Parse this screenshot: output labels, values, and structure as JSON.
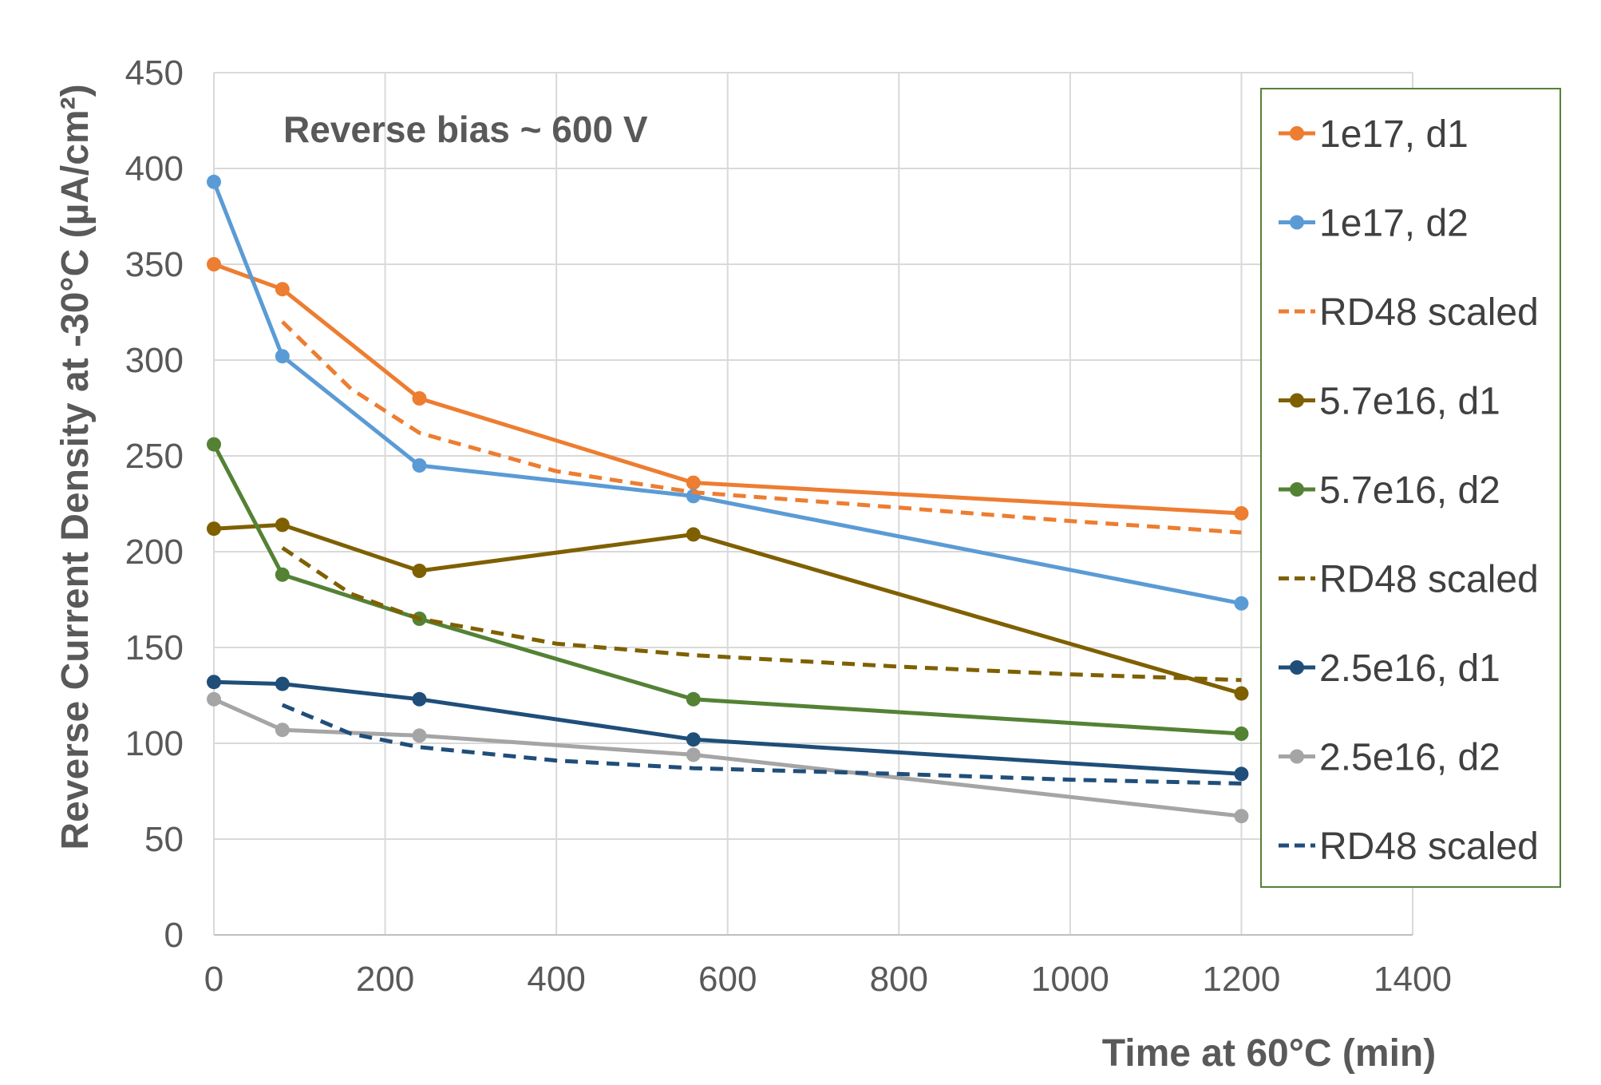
{
  "chart_data": {
    "type": "line",
    "title": "",
    "annotation": "Reverse bias ~ 600 V",
    "xlabel": "Time at 60°C (min)",
    "ylabel": "Reverse Current Density at -30°C (µA/cm²)",
    "xlim": [
      0,
      1400
    ],
    "ylim": [
      0,
      450
    ],
    "xticks": [
      0,
      200,
      400,
      600,
      800,
      1000,
      1200,
      1400
    ],
    "yticks": [
      0,
      50,
      100,
      150,
      200,
      250,
      300,
      350,
      400,
      450
    ],
    "grid": true,
    "legend_position": "right",
    "series": [
      {
        "name": "1e17, d1",
        "color": "#ED7D31",
        "style": "solid",
        "markers": true,
        "x": [
          0,
          80,
          240,
          560,
          1200
        ],
        "y": [
          350,
          337,
          280,
          236,
          220
        ]
      },
      {
        "name": "1e17, d2",
        "color": "#5B9BD5",
        "style": "solid",
        "markers": true,
        "x": [
          0,
          80,
          240,
          560,
          1200
        ],
        "y": [
          393,
          302,
          245,
          229,
          173
        ]
      },
      {
        "name": "RD48 scaled",
        "color": "#ED7D31",
        "style": "dashed",
        "markers": false,
        "x": [
          80,
          160,
          240,
          400,
          560,
          800,
          1000,
          1200
        ],
        "y": [
          320,
          285,
          262,
          242,
          231,
          223,
          216,
          210
        ]
      },
      {
        "name": "5.7e16, d1",
        "color": "#7F6000",
        "style": "solid",
        "markers": true,
        "x": [
          0,
          80,
          240,
          560,
          1200
        ],
        "y": [
          212,
          214,
          190,
          209,
          126
        ]
      },
      {
        "name": "5.7e16, d2",
        "color": "#548235",
        "style": "solid",
        "markers": true,
        "x": [
          0,
          80,
          240,
          560,
          1200
        ],
        "y": [
          256,
          188,
          165,
          123,
          105
        ]
      },
      {
        "name": "RD48 scaled",
        "color": "#7F6000",
        "style": "dashed",
        "markers": false,
        "x": [
          80,
          160,
          240,
          400,
          560,
          800,
          1000,
          1200
        ],
        "y": [
          202,
          178,
          165,
          152,
          146,
          140,
          136,
          133
        ]
      },
      {
        "name": "2.5e16, d1",
        "color": "#1F4E79",
        "style": "solid",
        "markers": true,
        "x": [
          0,
          80,
          240,
          560,
          1200
        ],
        "y": [
          132,
          131,
          123,
          102,
          84
        ]
      },
      {
        "name": "2.5e16, d2",
        "color": "#A5A5A5",
        "style": "solid",
        "markers": true,
        "x": [
          0,
          80,
          240,
          560,
          1200
        ],
        "y": [
          123,
          107,
          104,
          94,
          62
        ]
      },
      {
        "name": "RD48 scaled",
        "color": "#1F4E79",
        "style": "dashed",
        "markers": false,
        "x": [
          80,
          160,
          240,
          400,
          560,
          800,
          1000,
          1200
        ],
        "y": [
          120,
          105,
          98,
          91,
          87,
          84,
          81,
          79
        ]
      }
    ]
  }
}
